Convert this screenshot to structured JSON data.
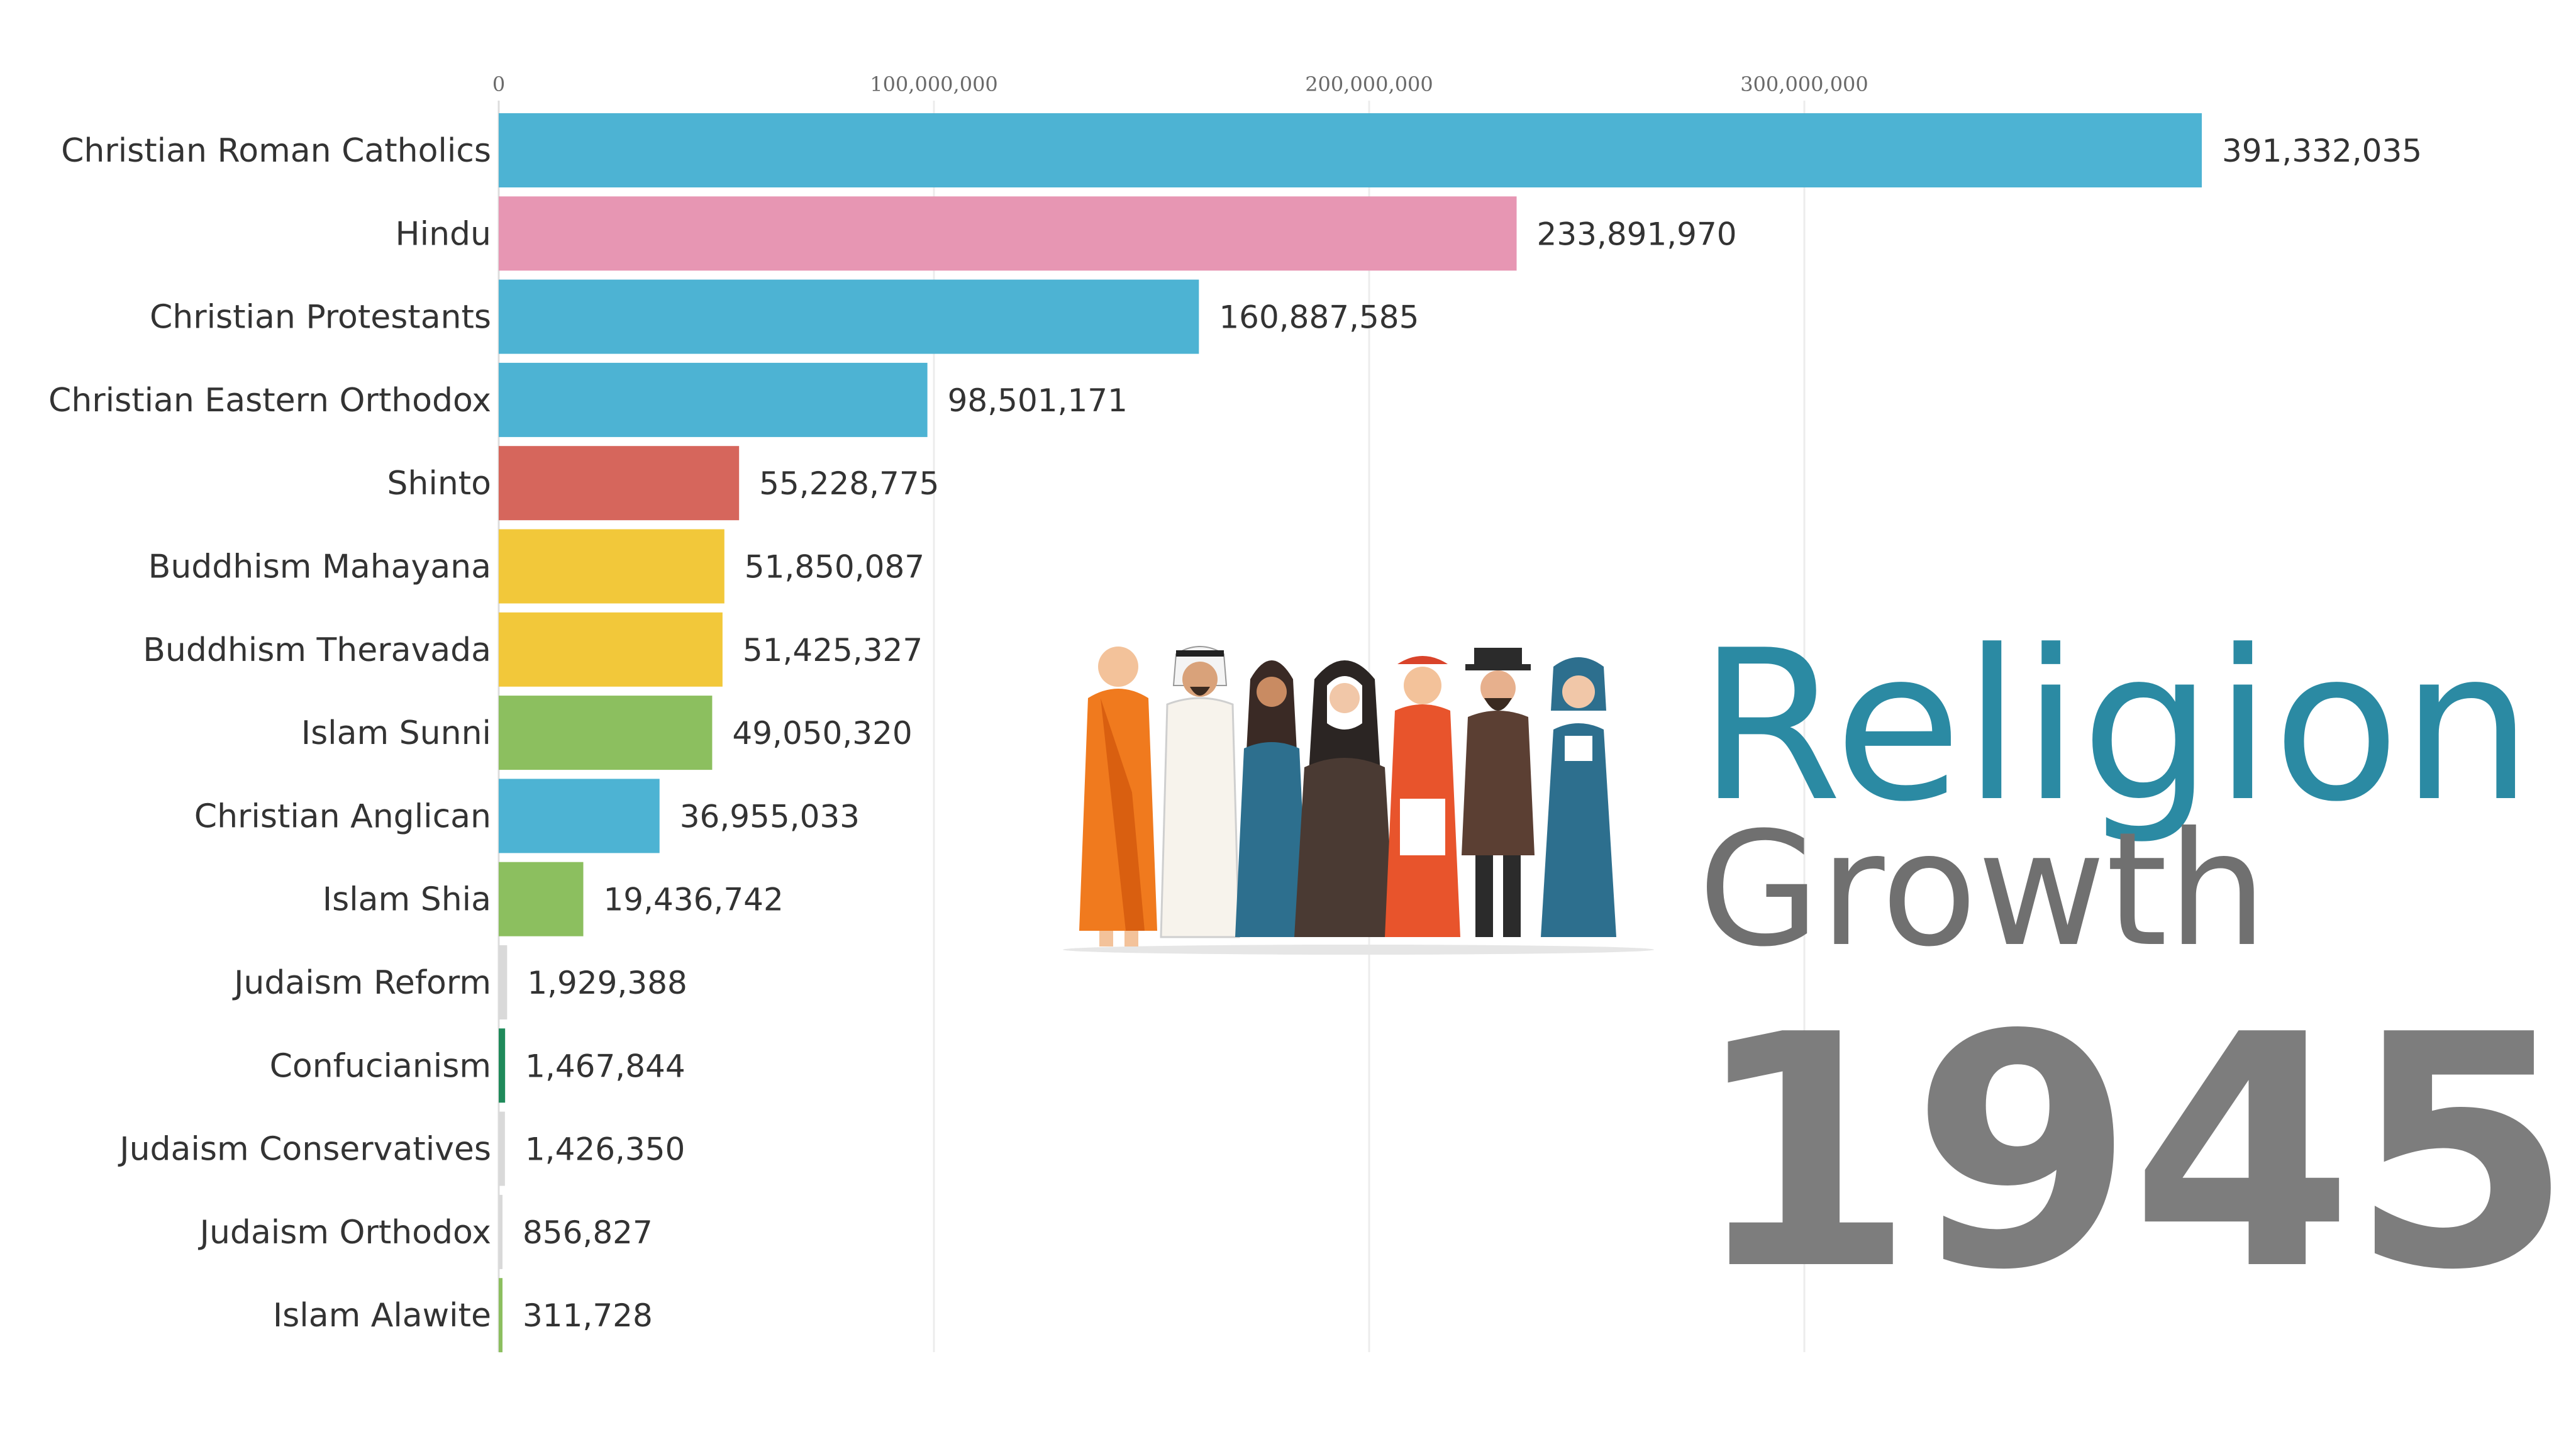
{
  "title": {
    "line1": "Religion",
    "line2": "Growth"
  },
  "year": "1945",
  "chart_data": {
    "type": "bar",
    "orientation": "horizontal",
    "title": "",
    "xlabel": "",
    "ylabel": "",
    "xlim": [
      0,
      391332035
    ],
    "ticks": [
      {
        "value": 0,
        "label": "0"
      },
      {
        "value": 100000000,
        "label": "100,000,000"
      },
      {
        "value": 200000000,
        "label": "200,000,000"
      },
      {
        "value": 300000000,
        "label": "300,000,000"
      }
    ],
    "grid": true,
    "axis_position": "top",
    "categories": [
      "Christian Roman Catholics",
      "Hindu",
      "Christian Protestants",
      "Christian Eastern Orthodox",
      "Shinto",
      "Buddhism Mahayana",
      "Buddhism Theravada",
      "Islam Sunni",
      "Christian Anglican",
      "Islam Shia",
      "Judaism Reform",
      "Confucianism",
      "Judaism Conservatives",
      "Judaism Orthodox",
      "Islam Alawite"
    ],
    "values": [
      391332035,
      233891970,
      160887585,
      98501171,
      55228775,
      51850087,
      51425327,
      49050320,
      36955033,
      19436742,
      1929388,
      1467844,
      1426350,
      856827,
      311728
    ],
    "value_labels": [
      "391,332,035",
      "233,891,970",
      "160,887,585",
      "98,501,171",
      "55,228,775",
      "51,850,087",
      "51,425,327",
      "49,050,320",
      "36,955,033",
      "19,436,742",
      "1,929,388",
      "1,467,844",
      "1,426,350",
      "856,827",
      "311,728"
    ],
    "colors": [
      "#4db3d3",
      "#e796b3",
      "#4db3d3",
      "#4db3d3",
      "#d6665c",
      "#f2c83a",
      "#f2c83a",
      "#8cbf5f",
      "#4db3d3",
      "#8cbf5f",
      "#d9d9d9",
      "#1f8a5a",
      "#d9d9d9",
      "#d9d9d9",
      "#8cbf5f"
    ]
  }
}
